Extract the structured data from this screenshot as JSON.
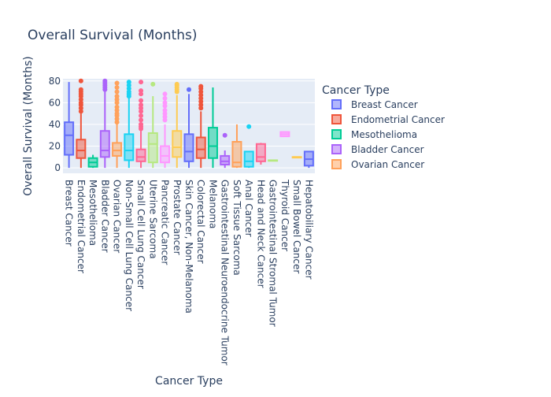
{
  "chart_data": {
    "type": "box",
    "title": "Overall Survival (Months)",
    "xlabel": "Cancer Type",
    "ylabel": "Overall Survival (Months)",
    "ylim": [
      -5,
      82
    ],
    "yticks": [
      0,
      20,
      40,
      60,
      80
    ],
    "grid": true,
    "legend": {
      "title": "Cancer Type",
      "position": "right",
      "visible_entries": [
        "Breast Cancer",
        "Endometrial Cancer",
        "Mesothelioma",
        "Bladder Cancer",
        "Ovarian Cancer"
      ]
    },
    "series": [
      {
        "name": "Breast Cancer",
        "color": "#636efa",
        "min": 0,
        "q1": 12,
        "median": 30,
        "q3": 42,
        "max": 79,
        "outliers": []
      },
      {
        "name": "Endometrial Cancer",
        "color": "#EF553B",
        "min": 0,
        "q1": 9,
        "median": 16,
        "q3": 26,
        "max": 50,
        "outliers": [
          52,
          55,
          58,
          60,
          63,
          66,
          68,
          70,
          72,
          80
        ]
      },
      {
        "name": "Mesothelioma",
        "color": "#00cc96",
        "min": 0,
        "q1": 1,
        "median": 5,
        "q3": 9,
        "max": 12,
        "outliers": []
      },
      {
        "name": "Bladder Cancer",
        "color": "#ab63fa",
        "min": 0,
        "q1": 10,
        "median": 16,
        "q3": 34,
        "max": 70,
        "outliers": [
          72,
          74,
          76,
          78,
          80
        ]
      },
      {
        "name": "Ovarian Cancer",
        "color": "#FFA15A",
        "min": 0,
        "q1": 11,
        "median": 16,
        "q3": 23,
        "max": 40,
        "outliers": [
          42,
          45,
          48,
          50,
          53,
          56,
          60,
          63,
          66,
          70,
          74,
          78
        ]
      },
      {
        "name": "Non-Small Cell Lung Cancer",
        "color": "#19d3f3",
        "min": 0,
        "q1": 7,
        "median": 16,
        "q3": 31,
        "max": 64,
        "outliers": [
          66,
          68,
          70,
          73,
          76,
          79
        ]
      },
      {
        "name": "Small Cell Lung Cancer",
        "color": "#FF6692",
        "min": 0,
        "q1": 6,
        "median": 10,
        "q3": 17,
        "max": 34,
        "outliers": [
          36,
          38,
          40,
          44,
          48,
          52,
          55,
          58,
          62,
          68,
          71,
          79
        ]
      },
      {
        "name": "Uterine Sarcoma",
        "color": "#B6E880",
        "min": 0,
        "q1": 5,
        "median": 22,
        "q3": 32,
        "max": 66,
        "outliers": [
          77
        ]
      },
      {
        "name": "Pancreatic Cancer",
        "color": "#FF97FF",
        "min": 0,
        "q1": 5,
        "median": 11,
        "q3": 20,
        "max": 40,
        "outliers": [
          44,
          47,
          50,
          53,
          57,
          60,
          64,
          68
        ]
      },
      {
        "name": "Prostate Cancer",
        "color": "#FECB52",
        "min": 0,
        "q1": 10,
        "median": 19,
        "q3": 34,
        "max": 67,
        "outliers": [
          70,
          72,
          74,
          76,
          77
        ]
      },
      {
        "name": "Skin Cancer, Non-Melanoma",
        "color": "#636efa",
        "min": 0,
        "q1": 6,
        "median": 15,
        "q3": 31,
        "max": 68,
        "outliers": [
          72
        ]
      },
      {
        "name": "Colorectal Cancer",
        "color": "#EF553B",
        "min": 0,
        "q1": 9,
        "median": 17,
        "q3": 28,
        "max": 52,
        "outliers": [
          55,
          58,
          61,
          64,
          67,
          70,
          73,
          75
        ]
      },
      {
        "name": "Melanoma",
        "color": "#00cc96",
        "min": 0,
        "q1": 9,
        "median": 20,
        "q3": 37,
        "max": 74,
        "outliers": []
      },
      {
        "name": "Gastrointestinal Neuroendocrine Tumor",
        "color": "#ab63fa",
        "min": 0,
        "q1": 3,
        "median": 6,
        "q3": 11,
        "max": 16,
        "outliers": [
          30
        ]
      },
      {
        "name": "Soft Tissue Sarcoma",
        "color": "#FFA15A",
        "min": 0,
        "q1": 1,
        "median": 5,
        "q3": 24,
        "max": 40,
        "outliers": []
      },
      {
        "name": "Anal Cancer",
        "color": "#19d3f3",
        "min": 0,
        "q1": 1,
        "median": 6,
        "q3": 15,
        "max": 15,
        "outliers": [
          38
        ]
      },
      {
        "name": "Head and Neck Cancer",
        "color": "#FF6692",
        "min": 3,
        "q1": 6,
        "median": 10,
        "q3": 22,
        "max": 23,
        "outliers": []
      },
      {
        "name": "Gastrointestinal Stromal Tumor",
        "color": "#B6E880",
        "min": 7,
        "q1": 7,
        "median": 7,
        "q3": 7,
        "max": 7,
        "outliers": []
      },
      {
        "name": "Thyroid Cancer",
        "color": "#FF97FF",
        "min": 29,
        "q1": 29,
        "median": 31,
        "q3": 33,
        "max": 33,
        "outliers": []
      },
      {
        "name": "Small Bowel Cancer",
        "color": "#FECB52",
        "min": 10,
        "q1": 10,
        "median": 10,
        "q3": 10,
        "max": 10,
        "outliers": []
      },
      {
        "name": "Hepatobiliary Cancer",
        "color": "#636efa",
        "min": 0,
        "q1": 2,
        "median": 8,
        "q3": 15,
        "max": 15,
        "outliers": []
      }
    ]
  }
}
